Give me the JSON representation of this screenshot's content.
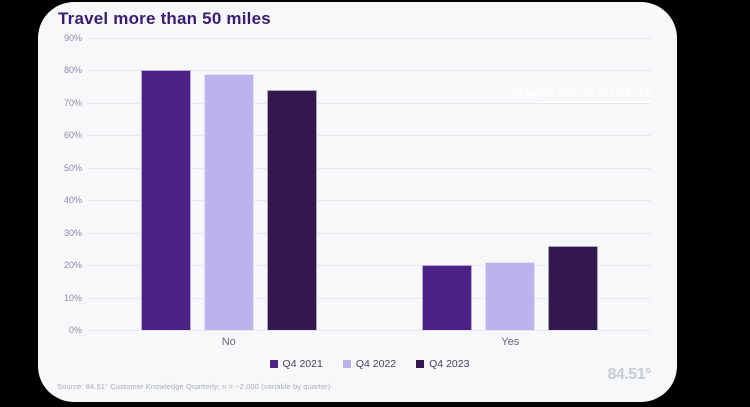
{
  "page": {
    "background_color": "#000000",
    "card_color": "#f7f8fa"
  },
  "header": {
    "title": "Travel more than 50 miles",
    "title_color": "#3a1d70"
  },
  "watermark": {
    "label": "DESIRED DESIGN ATTRIBUTE"
  },
  "chart_data": {
    "type": "bar",
    "title": "Travel more than 50 miles",
    "categories": [
      "No",
      "Yes"
    ],
    "series": [
      {
        "name": "Q4 2021",
        "color": "#4c2286",
        "values": [
          80,
          20
        ]
      },
      {
        "name": "Q4 2022",
        "color": "#beb2ed",
        "values": [
          79,
          21
        ]
      },
      {
        "name": "Q4 2023",
        "color": "#34194e",
        "values": [
          74,
          26
        ]
      }
    ],
    "ylim": [
      0,
      90
    ],
    "ytick_step": 10,
    "ytick_suffix": "%",
    "grid": true,
    "legend_position": "bottom"
  },
  "footer": {
    "source": "Source: 84.51° Customer Knowledge Quarterly; n = ~2,000 (variable by quarter)",
    "logo": "84.51°"
  }
}
